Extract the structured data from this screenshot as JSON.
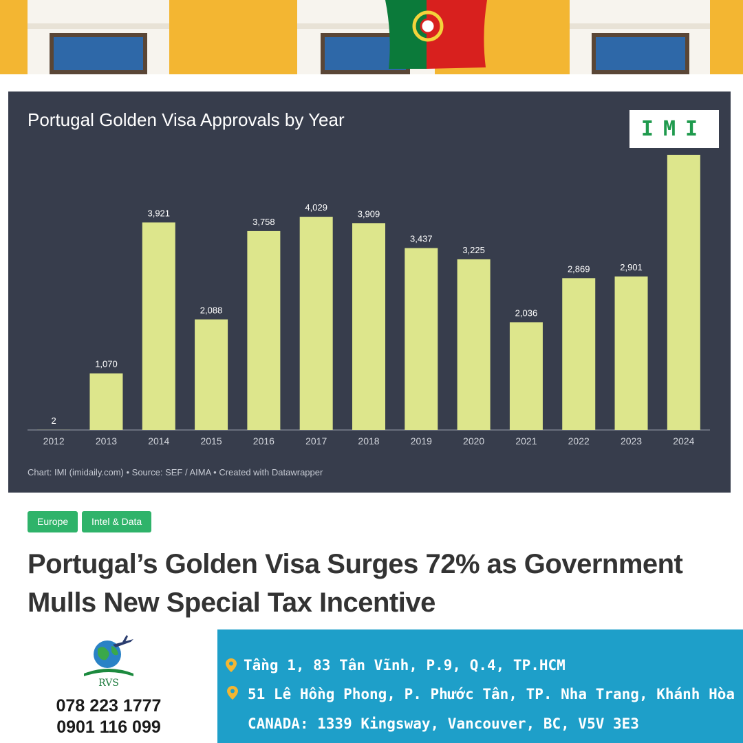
{
  "chart_data": {
    "type": "bar",
    "title": "Portugal Golden Visa Approvals by Year",
    "categories": [
      "2012",
      "2013",
      "2014",
      "2015",
      "2016",
      "2017",
      "2018",
      "2019",
      "2020",
      "2021",
      "2022",
      "2023",
      "2024"
    ],
    "values": [
      2,
      1070,
      3921,
      2088,
      3758,
      4029,
      3909,
      3437,
      3225,
      2036,
      2869,
      2901,
      5200
    ],
    "value_labels": [
      "2",
      "1,070",
      "3,921",
      "2,088",
      "3,758",
      "4,029",
      "3,909",
      "3,437",
      "3,225",
      "2,036",
      "2,869",
      "2,901",
      ""
    ],
    "ylim": [
      0,
      5200
    ],
    "grid": false,
    "footer": "Chart: IMI (imidaily.com) • Source: SEF / AIMA • Created with Datawrapper",
    "logo_text": "IMI",
    "colors": {
      "background": "#373d4c",
      "bar": "#dde68c",
      "text": "#ffffff",
      "axis": "#9aa0ab"
    }
  },
  "tags": [
    "Europe",
    "Intel & Data"
  ],
  "headline": "Portugal’s Golden Visa Surges 72% as Government Mulls New Special Tax Incentive",
  "brand": {
    "logo_label": "RVS",
    "phones": [
      "078 223 1777",
      "0901 116 099"
    ]
  },
  "contact": {
    "address_1": "Tầng 1, 83 Tân Vĩnh, P.9, Q.4, TP.HCM",
    "address_2": "51 Lê Hồng Phong, P. Phước Tân, TP. Nha Trang, Khánh Hòa",
    "address_3": "CANADA: 1339 Kingsway, Vancouver, BC, V5V 3E3",
    "colors": {
      "panel": "#1e9fc9",
      "pin": "#f3b632"
    }
  }
}
